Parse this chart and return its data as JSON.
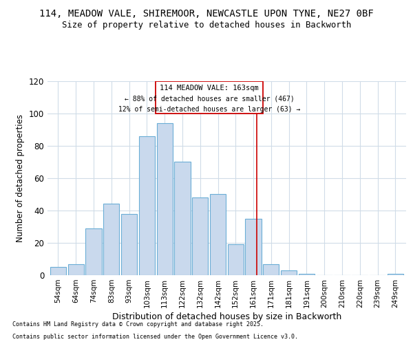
{
  "title_line1": "114, MEADOW VALE, SHIREMOOR, NEWCASTLE UPON TYNE, NE27 0BF",
  "title_line2": "Size of property relative to detached houses in Backworth",
  "xlabel": "Distribution of detached houses by size in Backworth",
  "ylabel": "Number of detached properties",
  "categories": [
    "54sqm",
    "64sqm",
    "74sqm",
    "83sqm",
    "93sqm",
    "103sqm",
    "113sqm",
    "122sqm",
    "132sqm",
    "142sqm",
    "152sqm",
    "161sqm",
    "171sqm",
    "181sqm",
    "191sqm",
    "200sqm",
    "210sqm",
    "220sqm",
    "239sqm",
    "249sqm"
  ],
  "values": [
    5,
    7,
    29,
    44,
    38,
    86,
    94,
    70,
    48,
    50,
    19,
    35,
    7,
    3,
    1,
    0,
    0,
    0,
    0,
    1
  ],
  "bar_color": "#c9d9ed",
  "bar_edge_color": "#6baed6",
  "highlight_line_color": "#cc0000",
  "annotation_text1": "114 MEADOW VALE: 163sqm",
  "annotation_text2": "← 88% of detached houses are smaller (467)",
  "annotation_text3": "12% of semi-detached houses are larger (63) →",
  "ann_box_edge_color": "#cc0000",
  "ann_bg_color": "#ffffff",
  "ylim": [
    0,
    120
  ],
  "yticks": [
    0,
    20,
    40,
    60,
    80,
    100,
    120
  ],
  "footer_line1": "Contains HM Land Registry data © Crown copyright and database right 2025.",
  "footer_line2": "Contains public sector information licensed under the Open Government Licence v3.0.",
  "bg_color": "#ffffff",
  "grid_color": "#d0dce8"
}
